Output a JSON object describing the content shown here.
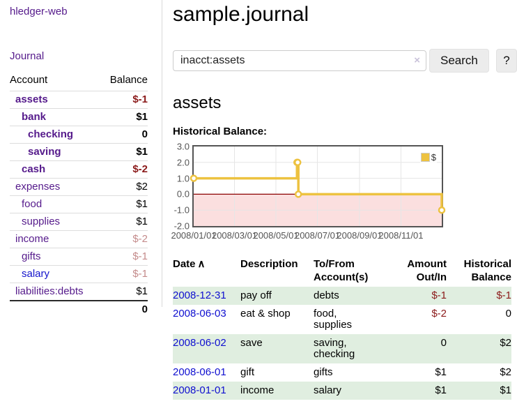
{
  "sidebar": {
    "brand": "hledger-web",
    "journal_link": "Journal",
    "accounts_table": {
      "headers": [
        "Account",
        "Balance"
      ],
      "rows": [
        {
          "name": "assets",
          "level": 1,
          "emph": true,
          "balance": "$-1",
          "balance_role": "negative"
        },
        {
          "name": "bank",
          "level": 2,
          "emph": true,
          "balance": "$1",
          "balance_role": "positive"
        },
        {
          "name": "checking",
          "level": 3,
          "emph": true,
          "balance": "0",
          "balance_role": "positive"
        },
        {
          "name": "saving",
          "level": 3,
          "emph": true,
          "balance": "$1",
          "balance_role": "positive"
        },
        {
          "name": "cash",
          "level": 2,
          "emph": true,
          "balance": "$-2",
          "balance_role": "negative"
        },
        {
          "name": "expenses",
          "level": 1,
          "emph": false,
          "balance": "$2",
          "balance_role": "positive"
        },
        {
          "name": "food",
          "level": 2,
          "emph": false,
          "balance": "$1",
          "balance_role": "positive"
        },
        {
          "name": "supplies",
          "level": 2,
          "emph": false,
          "balance": "$1",
          "balance_role": "positive"
        },
        {
          "name": "income",
          "level": 1,
          "emph": false,
          "balance": "$-2",
          "balance_role": "negative-dim"
        },
        {
          "name": "gifts",
          "level": 2,
          "emph": false,
          "balance": "$-1",
          "balance_role": "negative-dim"
        },
        {
          "name": "salary",
          "level": 2,
          "emph": false,
          "link_style": "unvisited",
          "balance": "$-1",
          "balance_role": "negative-dim"
        },
        {
          "name": "liabilities:debts",
          "level": 1,
          "emph": false,
          "balance": "$1",
          "balance_role": "positive"
        }
      ],
      "total": "0"
    }
  },
  "header": {
    "title": "sample.journal"
  },
  "search": {
    "query": "inacct:assets",
    "clear_icon": "×",
    "search_label": "Search",
    "help_label": "?"
  },
  "account_page": {
    "heading": "assets",
    "chart_label": "Historical Balance:"
  },
  "chart_data": {
    "type": "line",
    "step": true,
    "title": "Historical Balance",
    "legend": [
      {
        "label": "$",
        "color": "#edc240"
      }
    ],
    "x_range": [
      "2008-01-01",
      "2008-12-31"
    ],
    "ylim": [
      -2.0,
      3.0
    ],
    "y_ticks": [
      "3.0",
      "2.0",
      "1.0",
      "0.0",
      "-1.0",
      "-2.0"
    ],
    "x_ticks": [
      "2008/01/01",
      "2008/03/01",
      "2008/05/01",
      "2008/07/01",
      "2008/09/01",
      "2008/11/01"
    ],
    "points": [
      {
        "date": "2008-01-01",
        "value": 1
      },
      {
        "date": "2008-06-01",
        "value": 2
      },
      {
        "date": "2008-06-02",
        "value": 2
      },
      {
        "date": "2008-06-03",
        "value": 0
      },
      {
        "date": "2008-12-31",
        "value": -1
      }
    ],
    "series_color": "#edc240",
    "marker_fill": "#ffffff",
    "zero_line_color": "#8b0000",
    "negative_region_color": "#fbdfdf",
    "grid_color": "#e6e6e6",
    "legend_position": "top-right"
  },
  "transactions": {
    "columns": [
      {
        "label": "Date",
        "sort_icon": "∧",
        "align": "left"
      },
      {
        "label": "Description",
        "align": "left"
      },
      {
        "label": "To/From Account(s)",
        "align": "left"
      },
      {
        "label": "Amount Out/In",
        "align": "right"
      },
      {
        "label": "Historical Balance",
        "align": "right"
      }
    ],
    "rows": [
      {
        "date": "2008-12-31",
        "description": "pay off",
        "accounts": "debts",
        "amount": "$-1",
        "amount_role": "negative",
        "balance": "$-1",
        "balance_role": "negative"
      },
      {
        "date": "2008-06-03",
        "description": "eat & shop",
        "accounts": "food, supplies",
        "amount": "$-2",
        "amount_role": "negative",
        "balance": "0",
        "balance_role": "positive"
      },
      {
        "date": "2008-06-02",
        "description": "save",
        "accounts": "saving, checking",
        "amount": "0",
        "amount_role": "positive",
        "balance": "$2",
        "balance_role": "positive"
      },
      {
        "date": "2008-06-01",
        "description": "gift",
        "accounts": "gifts",
        "amount": "$1",
        "amount_role": "positive",
        "balance": "$2",
        "balance_role": "positive"
      },
      {
        "date": "2008-01-01",
        "description": "income",
        "accounts": "salary",
        "amount": "$1",
        "amount_role": "positive",
        "balance": "$1",
        "balance_role": "positive"
      }
    ]
  }
}
